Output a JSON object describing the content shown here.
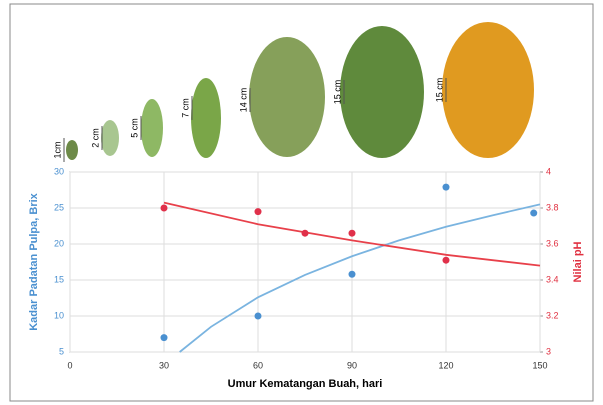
{
  "size_labels": [
    "1cm",
    "2 cm",
    "5 cm",
    "7 cm",
    "14 cm",
    "15 cm",
    "15 cm"
  ],
  "chart_data": {
    "type": "scatter",
    "x_label": "Umur Kematangan Buah, hari",
    "y_label": "Kadar Padatan Pulpa, Brix",
    "y2_label": "Nilai pH",
    "xlim": [
      0,
      150
    ],
    "xticks": [
      0,
      30,
      60,
      90,
      120,
      150
    ],
    "ylim": [
      5,
      30
    ],
    "yticks": [
      5,
      10,
      15,
      20,
      25,
      30
    ],
    "y2lim": [
      3,
      4
    ],
    "y2ticks": [
      3,
      3.2,
      3.4,
      3.6,
      3.8,
      4
    ],
    "y_color": "#4a90d0",
    "y2_color": "#e03040",
    "grid": true,
    "series": [
      {
        "color": "#4a90d0",
        "style": "points",
        "x": [
          30,
          60,
          90,
          120,
          148
        ],
        "values": [
          7,
          10,
          15.8,
          27.9,
          24.3
        ]
      },
      {
        "color": "#e0304a",
        "style": "points",
        "axis": "y2",
        "x": [
          30,
          60,
          75,
          90,
          120
        ],
        "values": [
          3.8,
          3.78,
          3.66,
          3.66,
          3.51
        ]
      },
      {
        "color": "#7ab4e0",
        "style": "line",
        "x": [
          35,
          45,
          60,
          75,
          90,
          105,
          120,
          135,
          150
        ],
        "values": [
          5,
          8.5,
          12.6,
          15.7,
          18.3,
          20.5,
          22.4,
          24,
          25.5
        ]
      },
      {
        "color": "#e8404a",
        "style": "line",
        "axis": "y2",
        "x": [
          30,
          60,
          90,
          120,
          150
        ],
        "values": [
          3.83,
          3.71,
          3.62,
          3.54,
          3.48
        ]
      }
    ]
  }
}
